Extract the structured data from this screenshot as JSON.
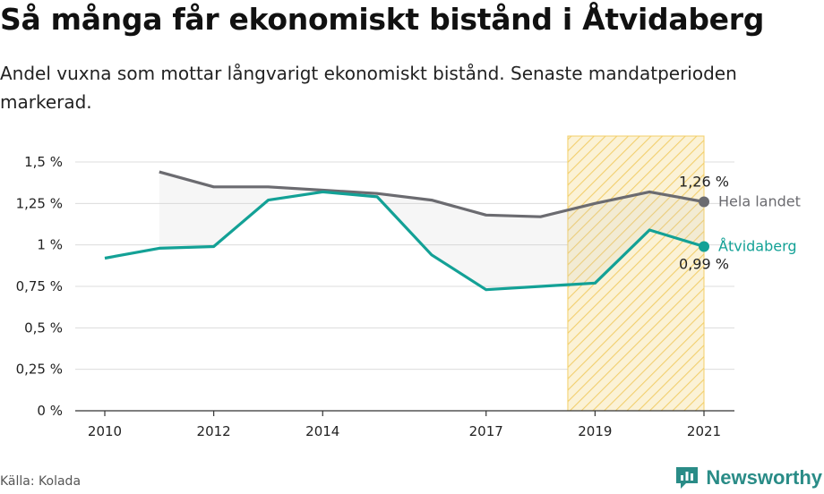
{
  "title": "Så många får ekonomiskt bistånd i Åtvidaberg",
  "subtitle": "Andel vuxna som mottar långvarigt ekonomiskt bistånd. Senaste mandatperioden markerad.",
  "source": "Källa: Kolada",
  "brand": {
    "name": "Newsworthy",
    "icon": "newsworthy-logo-icon",
    "color": "#2a8c87"
  },
  "chart_data": {
    "type": "line",
    "x_ticks": [
      2010,
      2012,
      2014,
      2017,
      2019,
      2021
    ],
    "y_ticks": [
      0,
      0.25,
      0.5,
      0.75,
      1,
      1.25,
      1.5
    ],
    "y_tick_labels": [
      "0 %",
      "0,25 %",
      "0,5 %",
      "0,75 %",
      "1 %",
      "1,25 %",
      "1,5 %"
    ],
    "xlim": [
      2010,
      2021
    ],
    "ylim": [
      0,
      1.5
    ],
    "grid": true,
    "highlight": {
      "from": 2018.5,
      "to": 2021,
      "color": "#f5cf5a",
      "pattern": "diagonal-hatch"
    },
    "series": [
      {
        "name": "Hela landet",
        "color": "#6b6b70",
        "end_label": "1,26 %",
        "x": [
          2011,
          2012,
          2013,
          2014,
          2015,
          2016,
          2017,
          2018,
          2019,
          2020,
          2021
        ],
        "values": [
          1.44,
          1.35,
          1.35,
          1.33,
          1.31,
          1.27,
          1.18,
          1.17,
          1.25,
          1.32,
          1.26
        ]
      },
      {
        "name": "Åtvidaberg",
        "color": "#13a196",
        "end_label": "0,99 %",
        "x": [
          2010,
          2011,
          2012,
          2013,
          2014,
          2015,
          2016,
          2017,
          2018,
          2019,
          2020,
          2021
        ],
        "values": [
          0.92,
          0.98,
          0.99,
          1.27,
          1.32,
          1.29,
          0.94,
          0.73,
          0.75,
          0.77,
          1.09,
          0.99
        ]
      }
    ]
  }
}
